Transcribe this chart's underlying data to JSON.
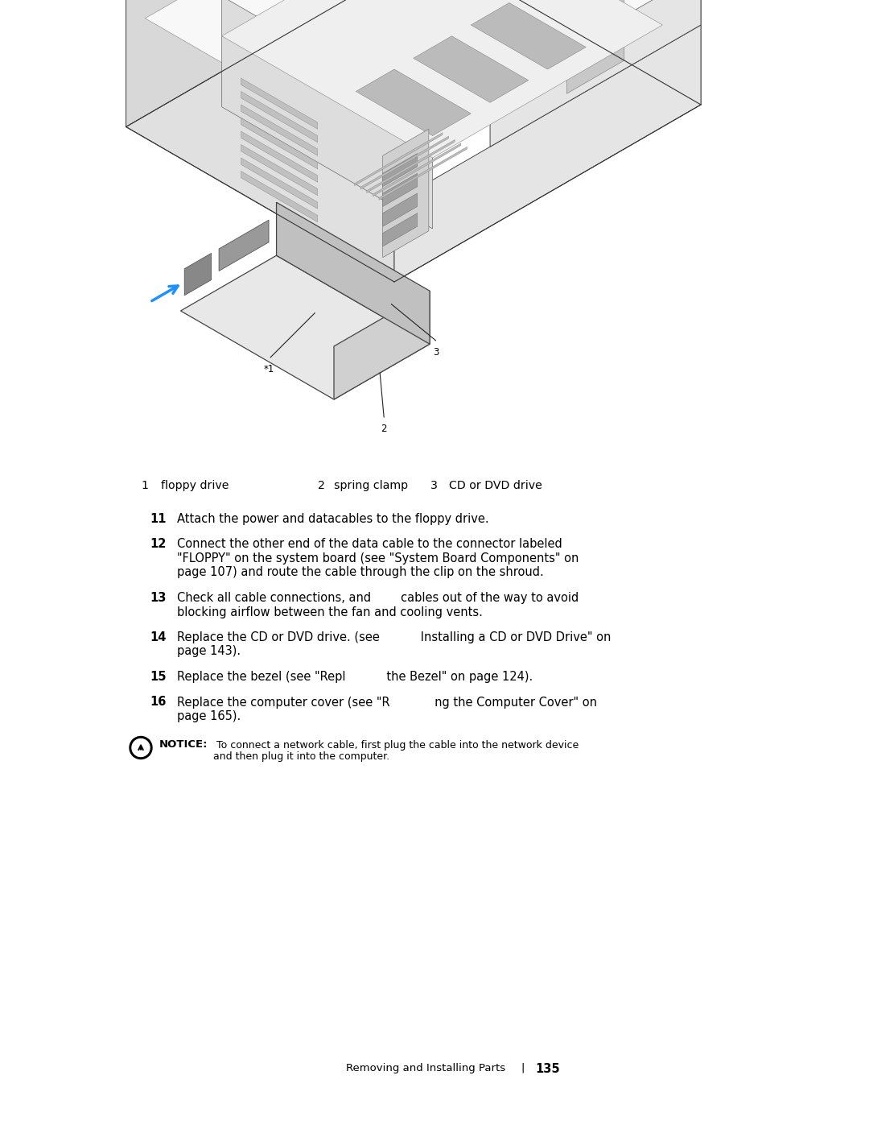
{
  "bg_color": "#ffffff",
  "page_width": 10.8,
  "page_height": 13.97,
  "caption_items": [
    {
      "num": "1",
      "text": "floppy drive"
    },
    {
      "num": "2",
      "text": "spring clamp"
    },
    {
      "num": "3",
      "text": "CD or DVD drive"
    }
  ],
  "step_texts": [
    {
      "num": "11",
      "line1": "Attach the power and data​cables to the floppy drive.",
      "line2": null
    },
    {
      "num": "12",
      "line1": "Connect the other end of the data cable to the connector labeled",
      "line2": "\"FLOPPY\" on the system board (see \"System Board Components\" on\npage 107) and route the cable through the clip on the shroud."
    },
    {
      "num": "13",
      "line1": "Check all cable connections, and          cables out of the way to avoid",
      "line2": "blocking airflow between the fan and cooling vents."
    },
    {
      "num": "14",
      "line1": "Replace the CD or DVD drive. (see           Installing a CD or DVD Drive\" on",
      "line2": "page 143)."
    },
    {
      "num": "15",
      "line1": "Replace the bezel (see \"Repl           the Bezel\" on page 124).",
      "line2": null
    },
    {
      "num": "16",
      "line1": "Replace the computer cover (see \"R            ng the Computer Cover\" on",
      "line2": "page 165)."
    }
  ],
  "notice_bold": "NOTICE:",
  "notice_body": " To connect a network cable, first plug the cable into the network device\nand then plug it into the computer.",
  "footer_text": "Removing and Installing Parts",
  "footer_sep": "|",
  "footer_page": "135"
}
